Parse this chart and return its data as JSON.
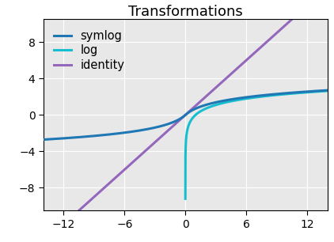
{
  "title": "Transformations",
  "xlim": [
    -14,
    14
  ],
  "ylim": [
    -10.5,
    10.5
  ],
  "xticks": [
    -12,
    -6,
    0,
    6,
    12
  ],
  "yticks": [
    -8,
    -4,
    0,
    4,
    8
  ],
  "symlog_color": "#1f77b4",
  "log_color": "#17becf",
  "identity_color": "#9467bd",
  "symlog_label": "symlog",
  "log_label": "log",
  "identity_label": "identity",
  "line_width": 2.2,
  "background_color": "#e8e8e8"
}
